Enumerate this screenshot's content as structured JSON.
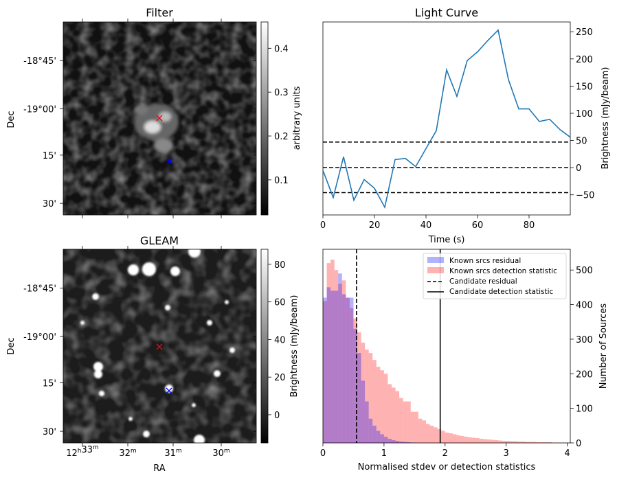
{
  "chart_data": [
    {
      "type": "heatmap",
      "title": "Filter",
      "ylabel": "Dec",
      "xlabel": "",
      "dec_ticks": [
        "-18°45'",
        "-19°00'",
        "15'",
        "30'"
      ],
      "colorbar": {
        "label": "arbitrary units",
        "range": [
          0.02,
          0.46
        ],
        "ticks": [
          "0.1",
          "0.2",
          "0.3",
          "0.4"
        ],
        "tick_values": [
          0.1,
          0.2,
          0.3,
          0.4
        ]
      },
      "markers": [
        {
          "color": "#ff0000",
          "symbol": "x"
        },
        {
          "color": "#0000ff",
          "symbol": "x"
        }
      ],
      "background": "#111111"
    },
    {
      "type": "line",
      "title": "Light Curve",
      "xlabel": "Time (s)",
      "ylabel": "Brightness (mJy/beam)",
      "xlim": [
        0,
        96
      ],
      "ylim": [
        -87,
        268
      ],
      "x_ticks": [
        "0",
        "20",
        "40",
        "60",
        "80"
      ],
      "x_tick_values": [
        0,
        20,
        40,
        60,
        80
      ],
      "y_ticks": [
        "−50",
        "0",
        "50",
        "100",
        "150",
        "200",
        "250"
      ],
      "y_tick_values": [
        -50,
        0,
        50,
        100,
        150,
        200,
        250
      ],
      "series": [
        {
          "color": "#1f77b4",
          "x": [
            0,
            4,
            8,
            12,
            16,
            20,
            24,
            28,
            32,
            36,
            40,
            44,
            48,
            52,
            56,
            60,
            64,
            68,
            72,
            76,
            80,
            84,
            88,
            92,
            96
          ],
          "y": [
            -5,
            -55,
            20,
            -60,
            -22,
            -38,
            -73,
            15,
            17,
            2,
            35,
            68,
            180,
            131,
            197,
            213,
            234,
            253,
            162,
            108,
            108,
            85,
            89,
            70,
            56
          ]
        }
      ],
      "hlines": [
        {
          "y": 47,
          "style": "dashed"
        },
        {
          "y": 0,
          "style": "dashed"
        },
        {
          "y": -46,
          "style": "dashed"
        }
      ]
    },
    {
      "type": "heatmap",
      "title": "GLEAM",
      "ylabel": "Dec",
      "xlabel": "RA",
      "dec_ticks": [
        "-18°45'",
        "-19°00'",
        "15'",
        "30'"
      ],
      "ra_ticks": [
        {
          "main": "12",
          "sup1": "h",
          "mid": "33",
          "sup2": "m"
        },
        {
          "main": "",
          "sup1": "",
          "mid": "32",
          "sup2": "m"
        },
        {
          "main": "",
          "sup1": "",
          "mid": "31",
          "sup2": "m"
        },
        {
          "main": "",
          "sup1": "",
          "mid": "30",
          "sup2": "m"
        }
      ],
      "colorbar": {
        "label": "Brightness (mJy/beam)",
        "range": [
          -15,
          88
        ],
        "ticks": [
          "0",
          "20",
          "40",
          "60",
          "80"
        ],
        "tick_values": [
          0,
          20,
          40,
          60,
          80
        ]
      },
      "markers": [
        {
          "color": "#ff0000",
          "symbol": "x"
        },
        {
          "color": "#0000ff",
          "symbol": "x"
        }
      ],
      "background": "#1c1c1c"
    },
    {
      "type": "bar",
      "title": "",
      "xlabel": "Normalised stdev or detection statistics",
      "ylabel": "Number of Sources",
      "xlim": [
        0,
        4.05
      ],
      "ylim": [
        0,
        560
      ],
      "x_ticks": [
        "0",
        "1",
        "2",
        "3",
        "4"
      ],
      "x_tick_values": [
        0,
        1,
        2,
        3,
        4
      ],
      "y_ticks": [
        "0",
        "100",
        "200",
        "300",
        "400",
        "500"
      ],
      "y_tick_values": [
        0,
        100,
        200,
        300,
        400,
        500
      ],
      "bin_width": 0.0625,
      "series": [
        {
          "name": "Known srcs residual",
          "color": "#0000ff",
          "alpha": 0.3,
          "values": [
            420,
            450,
            440,
            440,
            490,
            430,
            420,
            420,
            330,
            260,
            180,
            120,
            70,
            50,
            35,
            25,
            18,
            12,
            8,
            6,
            4,
            3,
            2,
            1,
            1
          ]
        },
        {
          "name": "Known srcs detection statistic",
          "color": "#ff0000",
          "alpha": 0.3,
          "values": [
            410,
            520,
            530,
            500,
            460,
            470,
            420,
            390,
            360,
            320,
            290,
            270,
            260,
            240,
            220,
            210,
            200,
            170,
            160,
            150,
            130,
            120,
            120,
            90,
            90,
            70,
            65,
            55,
            50,
            45,
            40,
            35,
            30,
            28,
            25,
            22,
            20,
            18,
            16,
            15,
            14,
            12,
            11,
            10,
            9,
            8,
            7,
            6,
            6,
            5,
            5,
            4,
            4,
            3,
            3,
            3,
            2,
            2,
            2,
            2,
            1,
            1,
            1,
            1,
            1
          ]
        }
      ],
      "vlines": [
        {
          "name": "Candidate residual",
          "x": 0.55,
          "style": "dashed"
        },
        {
          "name": "Candidate detection statistic",
          "x": 1.92,
          "style": "solid"
        }
      ],
      "legend_position": "top-right"
    }
  ]
}
